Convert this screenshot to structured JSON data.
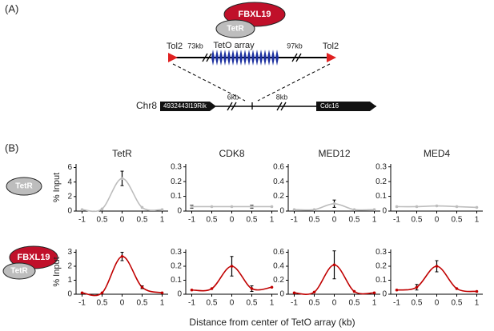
{
  "panel_a": {
    "label": "(A)",
    "fbxl19": "FBXL19",
    "tetr": "TetR",
    "tol2_left": "Tol2",
    "kb_left": "73kb",
    "array": "TetO array",
    "kb_right": "97kb",
    "tol2_right": "Tol2",
    "chromosome": "Chr8",
    "gene_left": "4932443I19Rik",
    "kb_near_left": "6kb",
    "kb_near_right": "8kb",
    "gene_right": "Cdc16"
  },
  "panel_b": {
    "label": "(B)",
    "row1_tetr": "TetR",
    "row2_fbxl19": "FBXL19",
    "row2_tetr": "TetR",
    "x_label": "Distance from center of TetO array (kb)"
  },
  "chart_data": [
    {
      "type": "line",
      "title": "TetR",
      "ylabel": "% Input",
      "x": [
        -1,
        -0.5,
        0,
        0.5,
        1
      ],
      "xlim": [
        -1.15,
        1.15
      ],
      "xticks": [
        -1,
        {
          "value": -0.5,
          "label": "0.5"
        },
        0,
        0.5,
        1
      ],
      "ylim": [
        0,
        6.5
      ],
      "yticks": [
        0,
        2,
        4,
        6
      ],
      "series": [
        {
          "color": "#bdbdbd",
          "values": [
            0.2,
            0.3,
            4.5,
            0.5,
            0.2
          ],
          "errors": [
            null,
            null,
            1.0,
            null,
            null
          ]
        }
      ]
    },
    {
      "type": "line",
      "title": "CDK8",
      "x": [
        -1,
        -0.5,
        0,
        0.5,
        1
      ],
      "xlim": [
        -1.15,
        1.15
      ],
      "xticks": [
        -1,
        {
          "value": -0.5,
          "label": "0.5"
        },
        0,
        0.5,
        1
      ],
      "ylim": [
        0,
        0.32
      ],
      "yticks": [
        0,
        0.1,
        0.2,
        0.3
      ],
      "series": [
        {
          "color": "#bdbdbd",
          "values": [
            0.03,
            0.03,
            0.03,
            0.03,
            0.03
          ],
          "errors": [
            0.01,
            null,
            null,
            0.01,
            null
          ]
        }
      ]
    },
    {
      "type": "line",
      "title": "MED12",
      "x": [
        -1,
        -0.5,
        0,
        0.5,
        1
      ],
      "xlim": [
        -1.15,
        1.15
      ],
      "xticks": [
        -1,
        {
          "value": -0.5,
          "label": "0.5"
        },
        0,
        0.5,
        1
      ],
      "ylim": [
        0,
        0.64
      ],
      "yticks": [
        0,
        0.2,
        0.4,
        0.6
      ],
      "series": [
        {
          "color": "#bdbdbd",
          "values": [
            0.02,
            0.02,
            0.1,
            0.02,
            0.02
          ],
          "errors": [
            null,
            null,
            0.05,
            null,
            null
          ]
        }
      ]
    },
    {
      "type": "line",
      "title": "MED4",
      "x": [
        -1,
        -0.5,
        0,
        0.5,
        1
      ],
      "xlim": [
        -1.15,
        1.15
      ],
      "xticks": [
        -1,
        {
          "value": -0.5,
          "label": "0.5"
        },
        0,
        0.5,
        1
      ],
      "ylim": [
        0,
        0.32
      ],
      "yticks": [
        0,
        0.1,
        0.2,
        0.3
      ],
      "series": [
        {
          "color": "#bdbdbd",
          "values": [
            0.03,
            0.03,
            0.035,
            0.03,
            0.025
          ],
          "errors": [
            null,
            null,
            null,
            null,
            null
          ]
        }
      ]
    },
    {
      "type": "line",
      "ylabel": "% Input",
      "x": [
        -1,
        -0.5,
        0,
        0.5,
        1
      ],
      "xlim": [
        -1.15,
        1.15
      ],
      "xticks": [
        -1,
        {
          "value": -0.5,
          "label": "0.5"
        },
        0,
        0.5,
        1
      ],
      "ylim": [
        0,
        3.2
      ],
      "yticks": [
        0,
        1,
        2,
        3
      ],
      "series": [
        {
          "color": "#c00000",
          "values": [
            0.1,
            0.1,
            2.7,
            0.5,
            0.1
          ],
          "errors": [
            null,
            null,
            0.3,
            0.1,
            null
          ]
        }
      ]
    },
    {
      "type": "line",
      "x": [
        -1,
        -0.5,
        0,
        0.5,
        1
      ],
      "xlim": [
        -1.15,
        1.15
      ],
      "xticks": [
        -1,
        {
          "value": -0.5,
          "label": "0.5"
        },
        0,
        0.5,
        1
      ],
      "ylim": [
        0,
        0.32
      ],
      "yticks": [
        0,
        0.1,
        0.2,
        0.3
      ],
      "series": [
        {
          "color": "#c00000",
          "values": [
            0.03,
            0.04,
            0.2,
            0.04,
            0.05
          ],
          "errors": [
            null,
            null,
            0.07,
            0.02,
            null
          ]
        }
      ]
    },
    {
      "type": "line",
      "x": [
        -1,
        -0.5,
        0,
        0.5,
        1
      ],
      "xlim": [
        -1.15,
        1.15
      ],
      "xticks": [
        -1,
        {
          "value": -0.5,
          "label": "0.5"
        },
        0,
        0.5,
        1
      ],
      "ylim": [
        0,
        0.64
      ],
      "yticks": [
        0,
        0.2,
        0.4,
        0.6
      ],
      "series": [
        {
          "color": "#c00000",
          "values": [
            0.02,
            0.03,
            0.42,
            0.04,
            0.02
          ],
          "errors": [
            null,
            null,
            0.2,
            null,
            null
          ]
        }
      ]
    },
    {
      "type": "line",
      "x": [
        -1,
        -0.5,
        0,
        0.5,
        1
      ],
      "xlim": [
        -1.15,
        1.15
      ],
      "xticks": [
        -1,
        {
          "value": -0.5,
          "label": "0.5"
        },
        0,
        0.5,
        1
      ],
      "ylim": [
        0,
        0.32
      ],
      "yticks": [
        0,
        0.1,
        0.2,
        0.3
      ],
      "series": [
        {
          "color": "#c00000",
          "values": [
            0.03,
            0.05,
            0.2,
            0.04,
            0.02
          ],
          "errors": [
            null,
            0.02,
            0.04,
            null,
            null
          ]
        }
      ]
    }
  ]
}
